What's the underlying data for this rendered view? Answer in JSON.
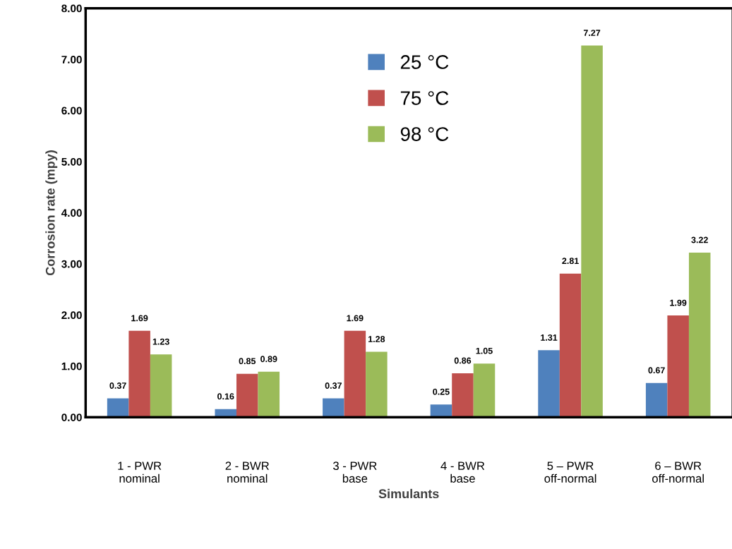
{
  "chart_data": {
    "type": "bar",
    "xlabel": "Simulants",
    "ylabel": "Corrosion rate (mpy)",
    "categories": [
      "1 - PWR\nnominal",
      "2 - BWR\nnominal",
      "3 - PWR\nbase",
      "4 - BWR\nbase",
      "5 – PWR\noff-normal",
      "6 – BWR\noff-normal"
    ],
    "series": [
      {
        "name": "25 °C",
        "color": "#4f81bd",
        "values": [
          0.37,
          0.16,
          0.37,
          0.25,
          1.31,
          0.67
        ]
      },
      {
        "name": "75 °C",
        "color": "#c0504d",
        "values": [
          1.69,
          0.85,
          1.69,
          0.86,
          2.81,
          1.99
        ]
      },
      {
        "name": "98 °C",
        "color": "#9bbb59",
        "values": [
          1.23,
          0.89,
          1.28,
          1.05,
          7.27,
          3.22
        ]
      }
    ],
    "ylim": [
      0,
      8
    ],
    "yticks": [
      {
        "value": 0,
        "label": "0.00"
      },
      {
        "value": 1,
        "label": "1.00"
      },
      {
        "value": 2,
        "label": "2.00"
      },
      {
        "value": 3,
        "label": "3.00"
      },
      {
        "value": 4,
        "label": "4.00"
      },
      {
        "value": 5,
        "label": "5.00"
      },
      {
        "value": 6,
        "label": "6.00"
      },
      {
        "value": 7,
        "label": "7.00"
      },
      {
        "value": 8,
        "label": "8.00"
      }
    ],
    "data_labels": true,
    "legend": "top",
    "grid": false
  }
}
